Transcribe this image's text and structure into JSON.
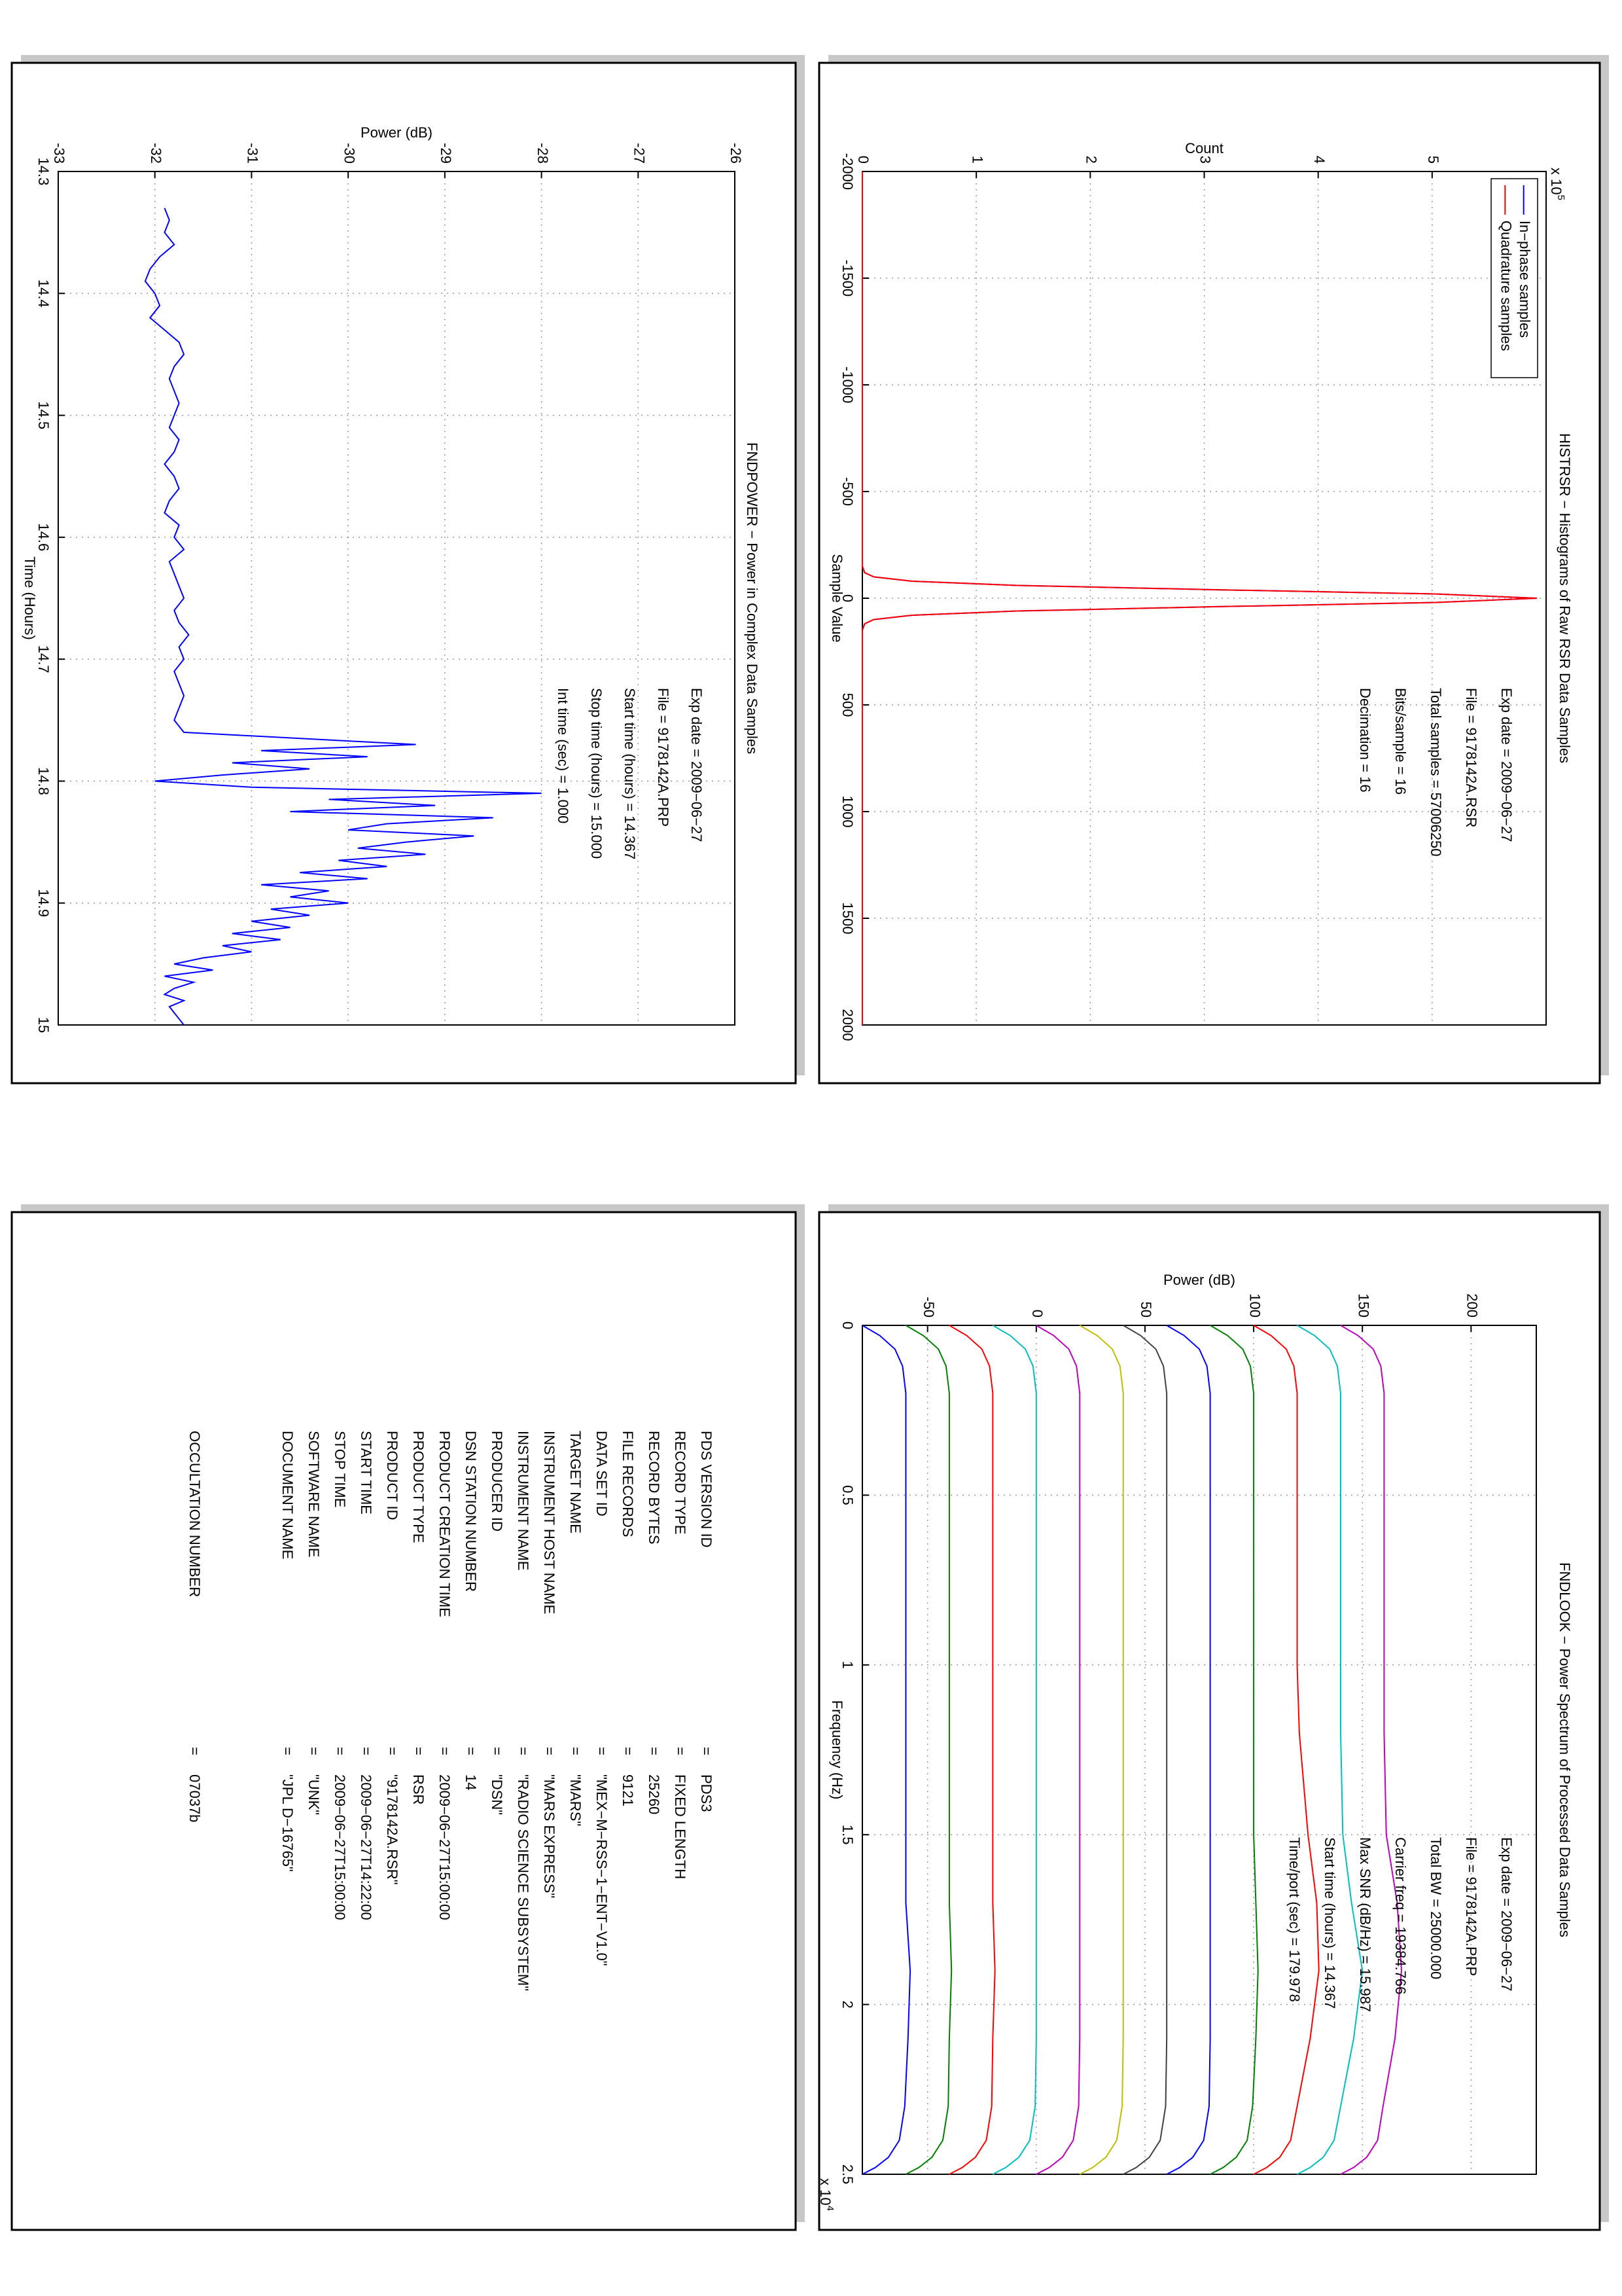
{
  "chart_data": [
    {
      "type": "line",
      "title": "HISTRSR − Histograms of Raw RSR Data Samples",
      "xlabel": "Sample Value",
      "ylabel": "Count",
      "y_multiplier": {
        "base": "x 10",
        "exponent": "5"
      },
      "x": [
        -2000,
        -1000,
        -200,
        -150,
        -120,
        -100,
        -80,
        -60,
        -40,
        -20,
        0,
        20,
        40,
        60,
        80,
        100,
        120,
        150,
        200,
        1000,
        2000
      ],
      "series": [
        {
          "name": "In−phase samples",
          "color": "#0000ff",
          "values": [
            0,
            0,
            0,
            0,
            0.02,
            0.1,
            0.43,
            1.36,
            3.08,
            5.03,
            5.92,
            5.03,
            3.08,
            1.36,
            0.43,
            0.1,
            0.02,
            0,
            0,
            0,
            0
          ]
        },
        {
          "name": "Quadrature samples",
          "color": "#ff0000",
          "values": [
            0,
            0,
            0,
            0,
            0.02,
            0.1,
            0.43,
            1.36,
            3.08,
            5.03,
            5.92,
            5.03,
            3.08,
            1.36,
            0.43,
            0.1,
            0.02,
            0,
            0,
            0,
            0
          ]
        }
      ],
      "xlim": [
        -2000,
        2000
      ],
      "ylim": [
        0,
        6
      ],
      "xticks": [
        -2000,
        -1500,
        -1000,
        -500,
        0,
        500,
        1000,
        1500,
        2000
      ],
      "yticks": [
        0,
        1,
        2,
        3,
        4,
        5
      ],
      "grid": true,
      "legend": "upper right",
      "annotations": [
        "Exp date = 2009−06−27",
        "File = 9178142A.RSR",
        "Total samples =  57006250",
        "Bits/sample    =       16",
        "Decimation     =       16"
      ]
    },
    {
      "type": "line",
      "title": "FNDPOWER − Power in Complex Data Samples",
      "xlabel": "Time (Hours)",
      "ylabel": "Power (dB)",
      "x": [
        14.33,
        14.34,
        14.35,
        14.36,
        14.37,
        14.38,
        14.39,
        14.4,
        14.41,
        14.42,
        14.43,
        14.44,
        14.45,
        14.46,
        14.47,
        14.48,
        14.49,
        14.5,
        14.51,
        14.52,
        14.53,
        14.54,
        14.55,
        14.56,
        14.57,
        14.58,
        14.59,
        14.6,
        14.61,
        14.62,
        14.63,
        14.64,
        14.65,
        14.66,
        14.67,
        14.68,
        14.69,
        14.7,
        14.71,
        14.72,
        14.73,
        14.74,
        14.75,
        14.76,
        14.77,
        14.775,
        14.78,
        14.785,
        14.79,
        14.795,
        14.8,
        14.805,
        14.81,
        14.815,
        14.82,
        14.825,
        14.83,
        14.835,
        14.84,
        14.845,
        14.85,
        14.855,
        14.86,
        14.865,
        14.87,
        14.875,
        14.88,
        14.885,
        14.89,
        14.895,
        14.9,
        14.905,
        14.91,
        14.915,
        14.92,
        14.925,
        14.93,
        14.935,
        14.94,
        14.945,
        14.95,
        14.955,
        14.96,
        14.965,
        14.97,
        14.975,
        14.98,
        14.985,
        14.99,
        14.995,
        15.0
      ],
      "series": [
        {
          "color": "#0000ff",
          "values": [
            -31.9,
            -31.85,
            -31.9,
            -31.8,
            -31.95,
            -32.05,
            -32.1,
            -32.0,
            -31.95,
            -32.05,
            -31.9,
            -31.75,
            -31.7,
            -31.8,
            -31.85,
            -31.8,
            -31.75,
            -31.8,
            -31.85,
            -31.75,
            -31.8,
            -31.9,
            -31.8,
            -31.75,
            -31.85,
            -31.9,
            -31.75,
            -31.8,
            -31.7,
            -31.85,
            -31.8,
            -31.75,
            -31.7,
            -31.8,
            -31.75,
            -31.65,
            -31.75,
            -31.7,
            -31.8,
            -31.75,
            -31.7,
            -31.75,
            -31.8,
            -31.7,
            -29.3,
            -30.9,
            -29.8,
            -31.2,
            -30.4,
            -31.3,
            -32.0,
            -31.0,
            -28.0,
            -30.2,
            -29.1,
            -30.6,
            -28.5,
            -29.6,
            -30.0,
            -28.7,
            -29.4,
            -29.9,
            -29.2,
            -30.1,
            -29.6,
            -30.5,
            -29.8,
            -30.9,
            -30.2,
            -30.6,
            -30.0,
            -30.8,
            -30.4,
            -31.0,
            -30.6,
            -31.2,
            -30.7,
            -31.3,
            -31.0,
            -31.5,
            -31.8,
            -31.4,
            -31.9,
            -31.6,
            -31.8,
            -31.9,
            -31.7,
            -31.85,
            -31.8,
            -31.75,
            -31.7
          ]
        }
      ],
      "xlim": [
        14.3,
        15
      ],
      "ylim": [
        -33,
        -26
      ],
      "xticks": [
        14.3,
        14.4,
        14.5,
        14.6,
        14.7,
        14.8,
        14.9,
        15
      ],
      "yticks": [
        -33,
        -32,
        -31,
        -30,
        -29,
        -28,
        -27,
        -26
      ],
      "grid": true,
      "annotations": [
        "Exp date = 2009−06−27",
        "File = 9178142A.PRP",
        "Start time (hours) = 14.367",
        "Stop time (hours) = 15.000",
        "Int time (sec) =       1.000"
      ]
    },
    {
      "type": "line",
      "title": "FNDLOOK − Power Spectrum of Processed Data Samples",
      "xlabel": "Frequency (Hz)",
      "ylabel": "Power (dB)",
      "x_multiplier": {
        "base": "x 10",
        "exponent": "4"
      },
      "x": [
        0,
        0.03,
        0.07,
        0.12,
        0.2,
        0.5,
        1,
        1.2,
        1.5,
        1.7,
        1.9,
        2.1,
        2.3,
        2.4,
        2.45,
        2.48,
        2.5
      ],
      "series": [
        {
          "color": "#0000ff",
          "values": [
            -80,
            -72,
            -65,
            -61.5,
            -60,
            -60,
            -60,
            -60,
            -60,
            -60,
            -58,
            -59,
            -60.5,
            -63,
            -68,
            -74,
            -80
          ]
        },
        {
          "color": "#008000",
          "values": [
            -60,
            -52,
            -45,
            -41.5,
            -40,
            -40,
            -40,
            -40,
            -40,
            -40,
            -39,
            -40,
            -40.5,
            -43,
            -48,
            -54,
            -60
          ]
        },
        {
          "color": "#ff0000",
          "values": [
            -40,
            -32,
            -25,
            -21.5,
            -20,
            -20,
            -20,
            -20,
            -20,
            -20,
            -19,
            -20,
            -20.5,
            -23,
            -28,
            -34,
            -40
          ]
        },
        {
          "color": "#00bfbf",
          "values": [
            -20,
            -12,
            -5,
            -1.5,
            0,
            0,
            0,
            0,
            0,
            0,
            0,
            0,
            -0.5,
            -3,
            -8,
            -14,
            -20
          ]
        },
        {
          "color": "#bf00bf",
          "values": [
            0,
            8,
            15,
            18.5,
            20,
            20,
            20,
            20,
            20,
            20,
            20,
            20,
            19.5,
            17,
            12,
            6,
            0
          ]
        },
        {
          "color": "#bfbf00",
          "values": [
            20,
            28,
            35,
            38.5,
            40,
            40,
            40,
            40,
            40,
            40,
            40,
            40,
            39.5,
            37,
            32,
            26,
            20
          ]
        },
        {
          "color": "#404040",
          "values": [
            40,
            48,
            55,
            58.5,
            60,
            60,
            60,
            60,
            60,
            60,
            60,
            60,
            59.5,
            57,
            52,
            46,
            40
          ]
        },
        {
          "color": "#0000ff",
          "values": [
            60,
            68,
            75,
            78.5,
            80,
            80,
            80,
            80,
            80,
            80,
            80,
            80,
            79.5,
            77,
            72,
            66,
            60
          ]
        },
        {
          "color": "#008000",
          "values": [
            80,
            88,
            95,
            98.5,
            100,
            100,
            100,
            100,
            100,
            101,
            102,
            101,
            99.5,
            97,
            92,
            86,
            80
          ]
        },
        {
          "color": "#ff0000",
          "values": [
            100,
            108,
            115,
            118.5,
            120,
            120,
            120,
            121,
            125,
            129,
            130,
            126,
            120,
            117,
            112,
            106,
            100
          ]
        },
        {
          "color": "#00bfbf",
          "values": [
            120,
            128,
            135,
            138.5,
            140,
            140,
            140,
            140,
            141,
            145,
            150,
            146,
            140,
            137,
            132,
            126,
            120
          ]
        },
        {
          "color": "#bf00bf",
          "values": [
            140,
            148,
            155,
            158.5,
            160,
            160,
            160,
            160,
            161,
            166,
            168,
            165,
            159.5,
            157,
            152,
            146,
            140
          ]
        }
      ],
      "xlim": [
        0,
        2.5
      ],
      "ylim": [
        -80,
        230
      ],
      "xticks": [
        0,
        0.5,
        1,
        1.5,
        2,
        2.5
      ],
      "yticks": [
        -50,
        0,
        50,
        100,
        150,
        200
      ],
      "grid": true,
      "annotations": [
        "Exp date = 2009−06−27",
        "File = 9178142A.PRP",
        "Total BW =      25000.000",
        "Carrier freq  =   19384.766",
        "Max SNR (dB/Hz) =     15.987",
        "Start time (hours) =    14.367",
        "Time/port (sec) =   179.978"
      ]
    }
  ],
  "pds_label": {
    "separator": "=",
    "rows": [
      {
        "key": "PDS VERSION ID",
        "value": "PDS3"
      },
      {
        "key": "RECORD TYPE",
        "value": "FIXED LENGTH"
      },
      {
        "key": "RECORD BYTES",
        "value": "25260"
      },
      {
        "key": "FILE RECORDS",
        "value": "9121"
      },
      {
        "key": "DATA SET ID",
        "value": "\"MEX−M−RSS−1−ENT−V1.0\""
      },
      {
        "key": "TARGET NAME",
        "value": "\"MARS\""
      },
      {
        "key": "INSTRUMENT HOST NAME",
        "value": "\"MARS EXPRESS\""
      },
      {
        "key": "INSTRUMENT NAME",
        "value": "\"RADIO SCIENCE SUBSYSTEM\""
      },
      {
        "key": "PRODUCER ID",
        "value": "\"DSN\""
      },
      {
        "key": "DSN STATION NUMBER",
        "value": "14"
      },
      {
        "key": "PRODUCT CREATION TIME",
        "value": "2009−06−27T15:00:00"
      },
      {
        "key": "PRODUCT TYPE",
        "value": "RSR"
      },
      {
        "key": "PRODUCT ID",
        "value": "\"9178142A.RSR\""
      },
      {
        "key": "START TIME",
        "value": "2009−06−27T14:22:00"
      },
      {
        "key": "STOP TIME",
        "value": "2009−06−27T15:00:00"
      },
      {
        "key": "SOFTWARE NAME",
        "value": "\"UNK\""
      },
      {
        "key": "DOCUMENT NAME",
        "value": "\"JPL D−16765\""
      }
    ],
    "occultation": {
      "key": "OCCULTATION NUMBER",
      "value": "07037b"
    }
  }
}
